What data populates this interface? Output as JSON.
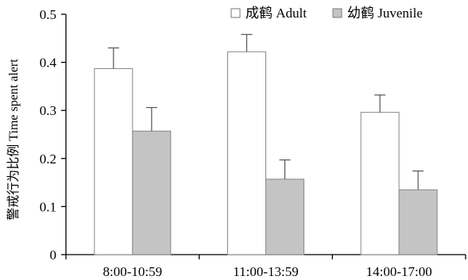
{
  "chart_data": {
    "type": "bar",
    "title": "",
    "xlabel": "",
    "ylabel": "警戒行为比例 Time spent alert",
    "ylim": [
      0,
      0.5
    ],
    "yticks": [
      "0",
      "0.1",
      "0.2",
      "0.3",
      "0.4",
      "0.5"
    ],
    "ytick_values": [
      0,
      0.1,
      0.2,
      0.3,
      0.4,
      0.5
    ],
    "categories": [
      "8:00-10:59",
      "11:00-13:59",
      "14:00-17:00"
    ],
    "series": [
      {
        "name": "成鹤 Adult",
        "color": "#ffffff",
        "values": [
          0.387,
          0.422,
          0.296
        ],
        "errors": [
          0.043,
          0.036,
          0.036
        ]
      },
      {
        "name": "幼鹤 Juvenile",
        "color": "#c4c4c4",
        "values": [
          0.257,
          0.157,
          0.135
        ],
        "errors": [
          0.049,
          0.04,
          0.039
        ]
      }
    ],
    "legend_position": "top-right",
    "grid": false,
    "error_bars": true
  }
}
